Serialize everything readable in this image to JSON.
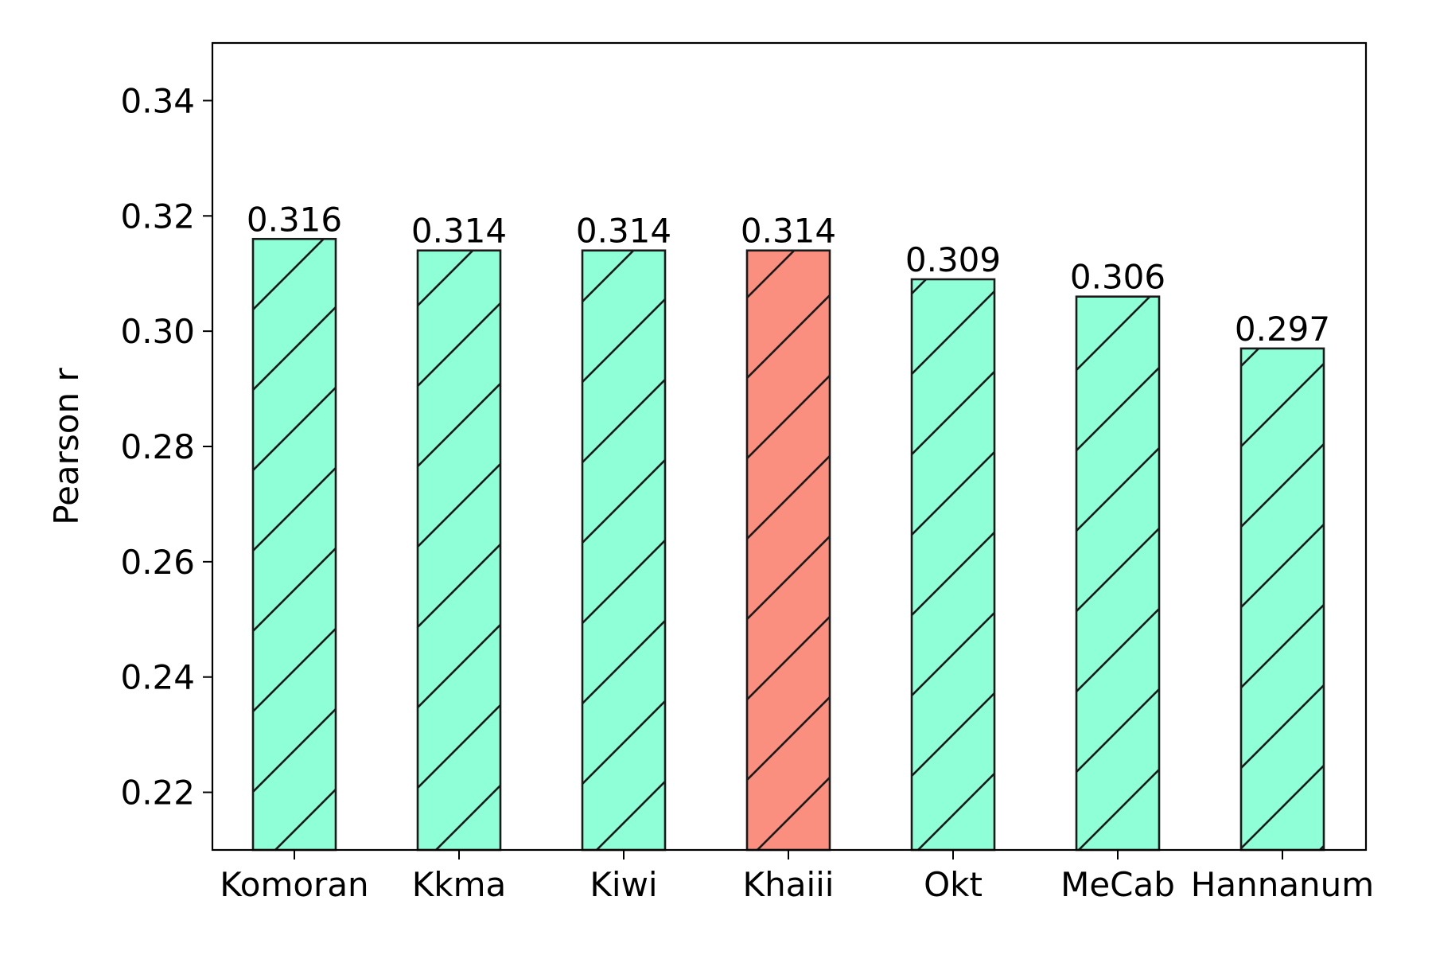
{
  "chart_data": {
    "type": "bar",
    "categories": [
      "Komoran",
      "Kkma",
      "Kiwi",
      "Khaiii",
      "Okt",
      "MeCab",
      "Hannanum"
    ],
    "values": [
      0.316,
      0.314,
      0.314,
      0.314,
      0.309,
      0.306,
      0.297
    ],
    "data_labels": [
      "0.316",
      "0.314",
      "0.314",
      "0.314",
      "0.309",
      "0.306",
      "0.297"
    ],
    "highlight_index": 3,
    "bar_color": "#8fffd8",
    "highlight_color": "#fa8f80",
    "edge_color": "#1a1a1a",
    "hatch": "diagonal",
    "xlabel": "",
    "ylabel": "Pearson r",
    "ylim": [
      0.21,
      0.35
    ],
    "yticks": [
      0.22,
      0.24,
      0.26,
      0.28,
      0.3,
      0.32,
      0.34
    ],
    "ytick_labels": [
      "0.22",
      "0.24",
      "0.26",
      "0.28",
      "0.30",
      "0.32",
      "0.34"
    ],
    "grid": false,
    "legend": "none"
  }
}
